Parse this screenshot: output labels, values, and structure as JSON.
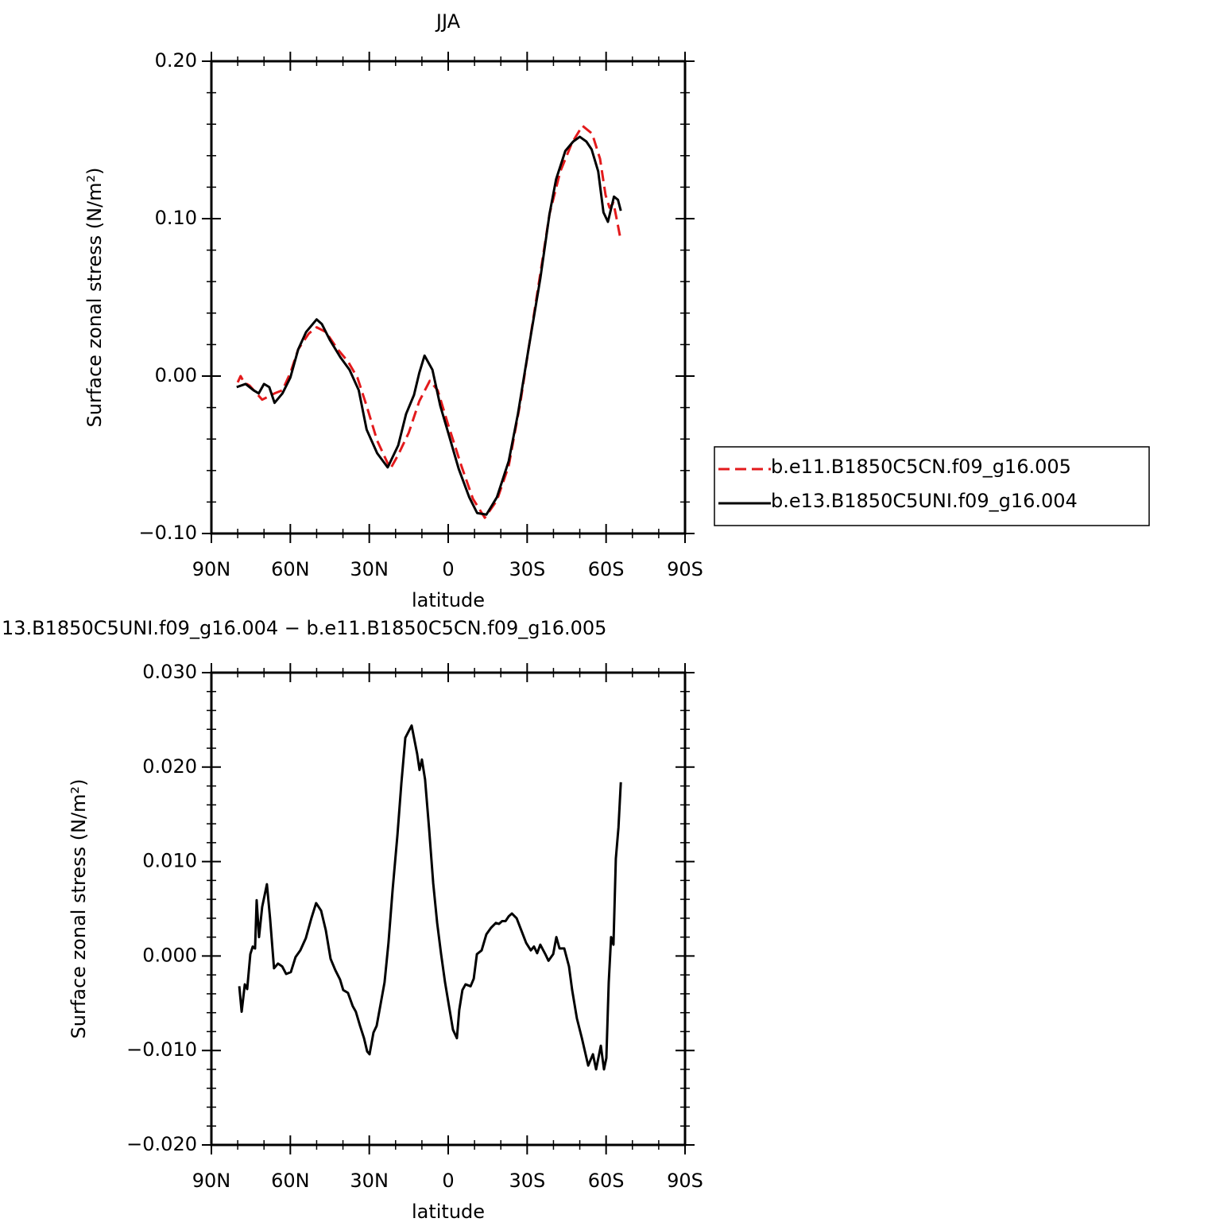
{
  "chart_data": [
    {
      "type": "line",
      "title": "JJA",
      "xlabel": "latitude",
      "ylabel": "Surface zonal stress (N/m²)",
      "xlim": [
        90,
        -90
      ],
      "xticks": [
        {
          "value": 90,
          "label": "90N"
        },
        {
          "value": 60,
          "label": "60N"
        },
        {
          "value": 30,
          "label": "30N"
        },
        0,
        {
          "value": -30,
          "label": "30S"
        },
        {
          "value": -60,
          "label": "60S"
        },
        {
          "value": -90,
          "label": "90S"
        }
      ],
      "ylim": [
        -0.1,
        0.2
      ],
      "yticks": [
        {
          "value": -0.1,
          "label": "−0.10"
        },
        {
          "value": 0,
          "label": "0.00"
        },
        {
          "value": 0.1,
          "label": "0.10"
        },
        {
          "value": 0.2,
          "label": "0.20"
        }
      ],
      "legend": "right",
      "series": [
        {
          "name": "b.e11.B1850C5CN.f09_g16.005",
          "color": "#e31a1c",
          "linestyle": "dashed",
          "x": [
            80,
            78.9,
            77.6,
            75.5,
            70.7,
            66,
            63,
            60,
            57,
            53,
            50,
            46.5,
            42,
            38,
            34.5,
            31,
            27,
            22,
            19,
            15,
            11,
            7,
            4,
            0,
            -5,
            -9.4,
            -13.9,
            -18.5,
            -23,
            -27.5,
            -30.5,
            -35,
            -38.5,
            -42.6,
            -47,
            -51,
            -54.7,
            -57.7,
            -59.8,
            -61.3,
            -62.8,
            -64,
            -65.6
          ],
          "values": [
            -0.004,
            0.0,
            -0.004,
            -0.006,
            -0.015,
            -0.011,
            -0.009,
            0.002,
            0.017,
            0.027,
            0.031,
            0.028,
            0.017,
            0.009,
            -0.001,
            -0.019,
            -0.041,
            -0.059,
            -0.05,
            -0.036,
            -0.016,
            -0.003,
            -0.009,
            -0.031,
            -0.057,
            -0.078,
            -0.09,
            -0.079,
            -0.057,
            -0.016,
            0.017,
            0.065,
            0.103,
            0.13,
            0.148,
            0.159,
            0.154,
            0.138,
            0.115,
            0.107,
            0.11,
            0.1,
            0.086
          ]
        },
        {
          "name": "b.e13.B1850C5UNI.f09_g16.004",
          "color": "#000000",
          "linestyle": "solid",
          "x": [
            80.4,
            77,
            74,
            72,
            70,
            68,
            66,
            63,
            60,
            57,
            54,
            50,
            48,
            45,
            41,
            37.5,
            34,
            31,
            27,
            23,
            19,
            16,
            13,
            11,
            9,
            6,
            3,
            0,
            -4,
            -8,
            -11,
            -14.5,
            -18.5,
            -23,
            -26.5,
            -30.5,
            -35,
            -38.5,
            -41,
            -44.5,
            -47.5,
            -50,
            -52.5,
            -54.5,
            -57,
            -59,
            -60.7,
            -63,
            -64.5,
            -65.6
          ],
          "values": [
            -0.007,
            -0.005,
            -0.009,
            -0.011,
            -0.005,
            -0.007,
            -0.017,
            -0.011,
            -0.001,
            0.017,
            0.028,
            0.036,
            0.033,
            0.023,
            0.012,
            0.004,
            -0.009,
            -0.034,
            -0.049,
            -0.058,
            -0.044,
            -0.024,
            -0.012,
            0.002,
            0.013,
            0.004,
            -0.019,
            -0.036,
            -0.059,
            -0.077,
            -0.087,
            -0.088,
            -0.077,
            -0.054,
            -0.024,
            0.017,
            0.062,
            0.103,
            0.125,
            0.143,
            0.149,
            0.152,
            0.149,
            0.144,
            0.13,
            0.104,
            0.098,
            0.114,
            0.112,
            0.105
          ]
        }
      ]
    },
    {
      "type": "line",
      "title": "13.B1850C5UNI.f09_g16.004 − b.e11.B1850C5CN.f09_g16.005",
      "xlabel": "latitude",
      "ylabel": "Surface zonal stress (N/m²)",
      "xlim": [
        90,
        -90
      ],
      "xticks": [
        {
          "value": 90,
          "label": "90N"
        },
        {
          "value": 60,
          "label": "60N"
        },
        {
          "value": 30,
          "label": "30N"
        },
        0,
        {
          "value": -30,
          "label": "30S"
        },
        {
          "value": -60,
          "label": "60S"
        },
        {
          "value": -90,
          "label": "90S"
        }
      ],
      "ylim": [
        -0.02,
        0.03
      ],
      "yticks": [
        {
          "value": -0.02,
          "label": "−0.020"
        },
        {
          "value": -0.01,
          "label": "−0.010"
        },
        {
          "value": 0,
          "label": "0.000"
        },
        {
          "value": 0.01,
          "label": "0.010"
        },
        {
          "value": 0.02,
          "label": "0.020"
        },
        {
          "value": 0.03,
          "label": "0.030"
        }
      ],
      "series": [
        {
          "color": "#000000",
          "linestyle": "solid",
          "x": [
            79.4,
            78.5,
            77.3,
            76.4,
            75.2,
            74.3,
            73.4,
            72.8,
            71.9,
            70.7,
            68.9,
            67.7,
            66.2,
            64.7,
            63.1,
            61.6,
            59.8,
            58.0,
            56.2,
            54.1,
            52.0,
            50.2,
            48.3,
            46.5,
            44.7,
            42.9,
            41.1,
            39.9,
            38.1,
            36.3,
            35.1,
            33.5,
            32.0,
            30.8,
            29.9,
            28.4,
            27.2,
            25.7,
            24.2,
            22.7,
            21.1,
            19.3,
            17.8,
            16.3,
            13.9,
            11.8,
            10.9,
            10.0,
            8.8,
            7.3,
            5.7,
            4.2,
            2.7,
            1.2,
            -0.3,
            -1.8,
            -3.3,
            -4.2,
            -5.4,
            -6.6,
            -8.5,
            -9.7,
            -10.9,
            -12.7,
            -14.5,
            -16.3,
            -18.1,
            -19.3,
            -20.5,
            -21.8,
            -23.0,
            -24.2,
            -26.0,
            -27.8,
            -29.6,
            -31.4,
            -32.6,
            -33.8,
            -35.0,
            -36.9,
            -38.1,
            -39.9,
            -41.1,
            -42.3,
            -44.1,
            -45.9,
            -47.1,
            -48.9,
            -50.8,
            -53.2,
            -55.0,
            -56.2,
            -58.0,
            -59.2,
            -60.1,
            -61.0,
            -61.9,
            -62.8,
            -63.7,
            -64.7,
            -65.6
          ],
          "values": [
            -0.0032,
            -0.0059,
            -0.003,
            -0.0035,
            0.0002,
            0.001,
            0.0008,
            0.0059,
            0.002,
            0.0052,
            0.0076,
            0.004,
            -0.0013,
            -0.0008,
            -0.0011,
            -0.0019,
            -0.0017,
            -0.0001,
            0.0006,
            0.0019,
            0.004,
            0.0056,
            0.0048,
            0.0027,
            -0.0003,
            -0.0015,
            -0.0025,
            -0.0036,
            -0.0039,
            -0.0053,
            -0.0059,
            -0.0074,
            -0.0087,
            -0.0101,
            -0.0104,
            -0.0081,
            -0.0074,
            -0.0051,
            -0.0028,
            0.0014,
            0.0071,
            0.0128,
            0.0183,
            0.0231,
            0.0244,
            0.0214,
            0.0197,
            0.0208,
            0.0187,
            0.0136,
            0.0077,
            0.0035,
            0.0002,
            -0.0028,
            -0.0053,
            -0.0078,
            -0.0087,
            -0.0057,
            -0.0036,
            -0.003,
            -0.0032,
            -0.0024,
            0.0002,
            0.0006,
            0.0023,
            0.003,
            0.0035,
            0.0034,
            0.0037,
            0.0037,
            0.0042,
            0.0045,
            0.004,
            0.0027,
            0.0014,
            0.0006,
            0.001,
            0.0003,
            0.0012,
            0.0002,
            -0.0005,
            0.0002,
            0.002,
            0.0008,
            0.0008,
            -0.0011,
            -0.0036,
            -0.0066,
            -0.0087,
            -0.0116,
            -0.0104,
            -0.012,
            -0.0095,
            -0.012,
            -0.0108,
            -0.0028,
            0.002,
            0.0012,
            0.0103,
            0.0136,
            0.0184
          ]
        }
      ]
    }
  ]
}
